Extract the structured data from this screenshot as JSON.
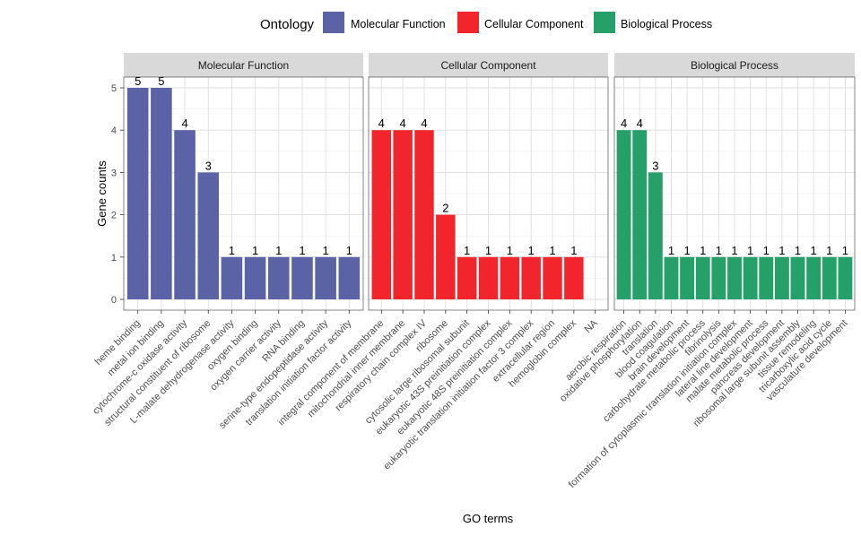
{
  "chart_data": {
    "type": "bar",
    "legend": {
      "title": "Ontology",
      "position": "top",
      "items": [
        {
          "label": "Molecular Function",
          "color": "#5B63A6"
        },
        {
          "label": "Cellular Component",
          "color": "#F1252B"
        },
        {
          "label": "Biological Process",
          "color": "#25A068"
        }
      ]
    },
    "xlabel": "GO terms",
    "ylabel": "Gene counts",
    "ylim": [
      0,
      5
    ],
    "yticks": [
      "0",
      "1",
      "2",
      "3",
      "4",
      "5"
    ],
    "grid": true,
    "panels": [
      {
        "name": "Molecular Function",
        "color": "#5B63A6",
        "categories": [
          "heme binding",
          "metal ion binding",
          "cytochrome-c oxidase activity",
          "structural constituent of ribosome",
          "L-malate dehydrogenase activity",
          "oxygen binding",
          "oxygen carrier activity",
          "RNA binding",
          "serine-type endopeptidase activity",
          "translation initiation factor activity"
        ],
        "values": [
          5,
          5,
          4,
          3,
          1,
          1,
          1,
          1,
          1,
          1
        ],
        "labels": [
          "5",
          "5",
          "4",
          "3",
          "1",
          "1",
          "1",
          "1",
          "1",
          "1"
        ]
      },
      {
        "name": "Cellular Component",
        "color": "#F1252B",
        "categories": [
          "integral component of membrane",
          "mitochondrial inner membrane",
          "respiratory chain complex IV",
          "ribosome",
          "cytosolic large ribosomal subunit",
          "eukaryotic 43S preinitiation complex",
          "eukaryotic 48S preinitiation complex",
          "eukaryotic translation initiation factor 3 complex",
          "extracellular region",
          "hemoglobin complex",
          "NA"
        ],
        "values": [
          4,
          4,
          4,
          2,
          1,
          1,
          1,
          1,
          1,
          1,
          null
        ],
        "labels": [
          "4",
          "4",
          "4",
          "2",
          "1",
          "1",
          "1",
          "1",
          "1",
          "1",
          ""
        ]
      },
      {
        "name": "Biological Process",
        "color": "#25A068",
        "categories": [
          "aerobic respiration",
          "oxidative phosphorylation",
          "translation",
          "blood coagulation",
          "brain development",
          "carbohydrate metabolic process",
          "fibrinolysis",
          "formation of cytoplasmic translation initiation complex",
          "lateral line development",
          "malate metabolic process",
          "pancreas development",
          "ribosomal large subunit assembly",
          "tissue remodeling",
          "tricarboxylic acid cycle",
          "vasculature development"
        ],
        "values": [
          4,
          4,
          3,
          1,
          1,
          1,
          1,
          1,
          1,
          1,
          1,
          1,
          1,
          1,
          1
        ],
        "labels": [
          "4",
          "4",
          "3",
          "1",
          "1",
          "1",
          "1",
          "1",
          "1",
          "1",
          "1",
          "1",
          "1",
          "1",
          "1"
        ]
      }
    ]
  }
}
